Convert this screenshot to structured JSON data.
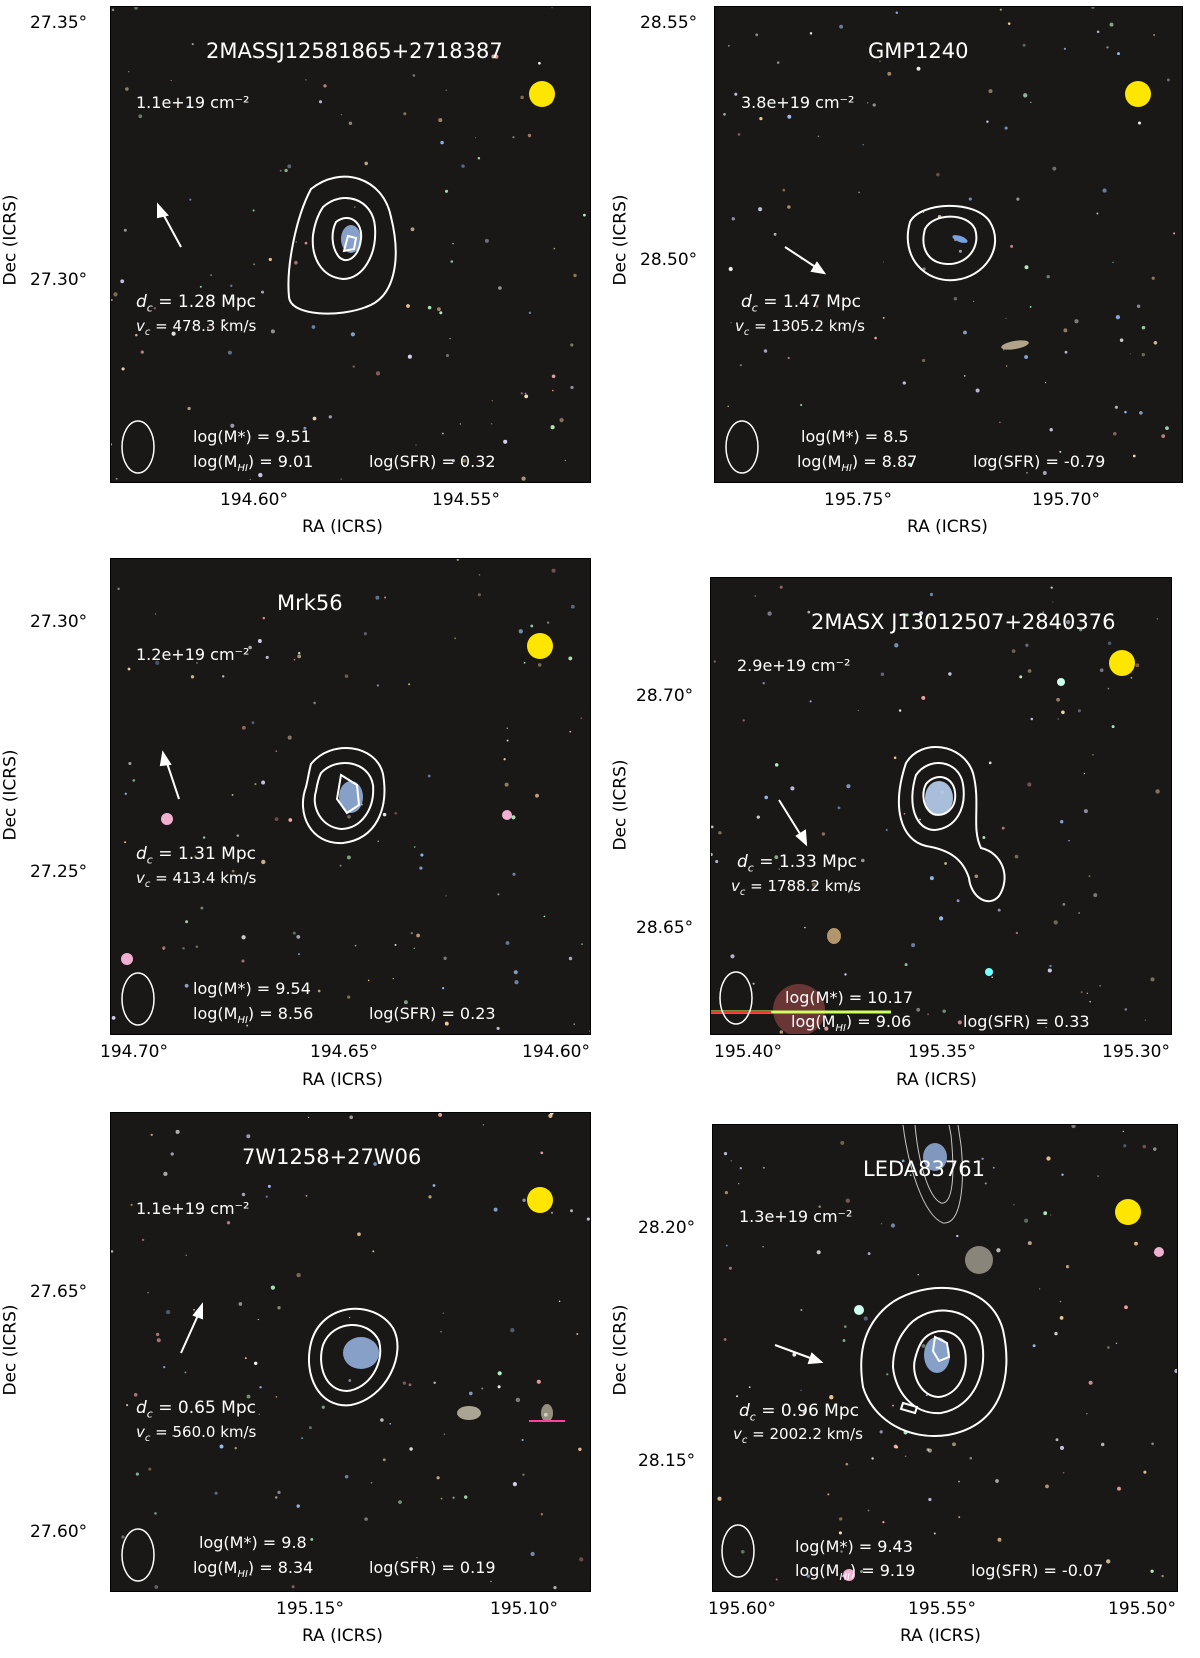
{
  "axis_labels": {
    "x": "RA (ICRS)",
    "y": "Dec (ICRS)"
  },
  "panels": [
    {
      "name": "2MASSJ12581865+2718387",
      "column_density": "1.1e+19 cm⁻²",
      "distance": "d꜀ = 1.28 Mpc",
      "dist_label": "d",
      "dist_sub": "c",
      "dist_value": " = 1.28 Mpc",
      "vel_label": "v",
      "vel_sub": "c",
      "vel_value": " =  478.3 km/s",
      "log_mstar": "log(M*) =  9.51",
      "log_mhi": "log(M",
      "log_mhi_sub": "HI",
      "log_mhi_value": ") =  9.01",
      "log_sfr": "log(SFR) =  0.32",
      "dec_ticks": [
        "27.35°",
        "27.30°"
      ],
      "ra_ticks": [
        "194.60°",
        "194.55°"
      ]
    },
    {
      "name": "GMP1240",
      "column_density": "3.8e+19 cm⁻²",
      "dist_label": "d",
      "dist_sub": "c",
      "dist_value": " = 1.47 Mpc",
      "vel_label": "v",
      "vel_sub": "c",
      "vel_value": " =  1305.2 km/s",
      "log_mstar": "log(M*) =  8.5",
      "log_mhi": "log(M",
      "log_mhi_sub": "HI",
      "log_mhi_value": ") =  8.87",
      "log_sfr": "log(SFR) =  -0.79",
      "dec_ticks": [
        "28.55°",
        "28.50°"
      ],
      "ra_ticks": [
        "195.75°",
        "195.70°"
      ]
    },
    {
      "name": "Mrk56",
      "column_density": "1.2e+19 cm⁻²",
      "dist_label": "d",
      "dist_sub": "c",
      "dist_value": " = 1.31 Mpc",
      "vel_label": "v",
      "vel_sub": "c",
      "vel_value": " =  413.4 km/s",
      "log_mstar": "log(M*) =  9.54",
      "log_mhi": "log(M",
      "log_mhi_sub": "HI",
      "log_mhi_value": ") =  8.56",
      "log_sfr": "log(SFR) =  0.23",
      "dec_ticks": [
        "27.30°",
        "27.25°"
      ],
      "ra_ticks": [
        "194.70°",
        "194.65°",
        "194.60°"
      ]
    },
    {
      "name": "2MASX J13012507+2840376",
      "column_density": "2.9e+19 cm⁻²",
      "dist_label": "d",
      "dist_sub": "c",
      "dist_value": " = 1.33 Mpc",
      "vel_label": "v",
      "vel_sub": "c",
      "vel_value": " =  1788.2 km/s",
      "log_mstar": "log(M*) =  10.17",
      "log_mhi": "log(M",
      "log_mhi_sub": "HI",
      "log_mhi_value": ") =  9.06",
      "log_sfr": "log(SFR) =  0.33",
      "dec_ticks": [
        "28.70°",
        "28.65°"
      ],
      "ra_ticks": [
        "195.40°",
        "195.35°",
        "195.30°"
      ]
    },
    {
      "name": "7W1258+27W06",
      "column_density": "1.1e+19 cm⁻²",
      "dist_label": "d",
      "dist_sub": "c",
      "dist_value": " = 0.65 Mpc",
      "vel_label": "v",
      "vel_sub": "c",
      "vel_value": " =  560.0 km/s",
      "log_mstar": "log(M*) =  9.8",
      "log_mhi": "log(M",
      "log_mhi_sub": "HI",
      "log_mhi_value": ") =  8.34",
      "log_sfr": "log(SFR) =  0.19",
      "dec_ticks": [
        "27.65°",
        "27.60°"
      ],
      "ra_ticks": [
        "195.15°",
        "195.10°"
      ]
    },
    {
      "name": "LEDA83761",
      "column_density": "1.3e+19 cm⁻²",
      "dist_label": "d",
      "dist_sub": "c",
      "dist_value": " = 0.96 Mpc",
      "vel_label": "v",
      "vel_sub": "c",
      "vel_value": " =  2002.2 km/s",
      "log_mstar": "log(M*) =  9.43",
      "log_mhi": "log(M",
      "log_mhi_sub": "HI",
      "log_mhi_value": ") =  9.19",
      "log_sfr": "log(SFR) =  -0.07",
      "dec_ticks": [
        "28.20°",
        "28.15°"
      ],
      "ra_ticks": [
        "195.60°",
        "195.55°",
        "195.50°"
      ]
    }
  ],
  "colors": {
    "beam": "#ffe600",
    "contour": "#ffffff",
    "background": "#1a1816"
  }
}
